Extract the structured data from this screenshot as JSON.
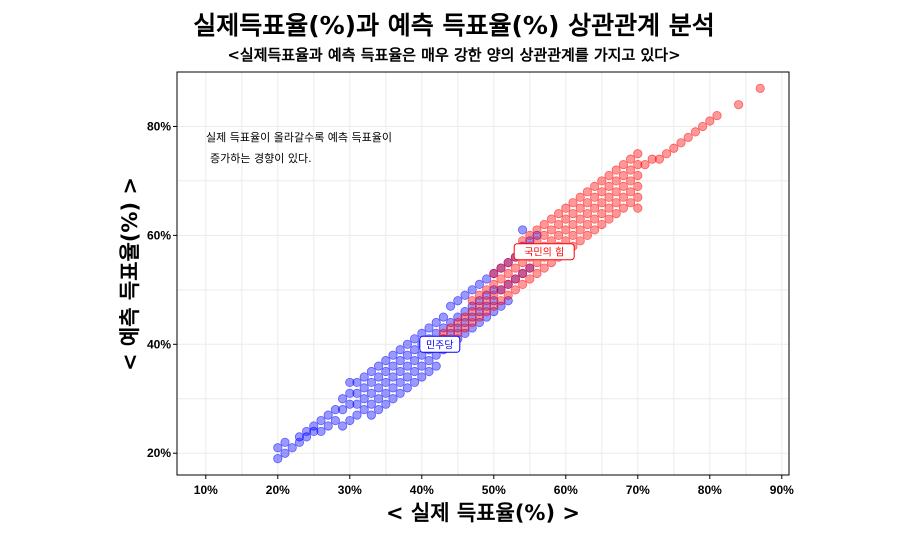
{
  "chart_data": {
    "type": "scatter",
    "title": "실제득표율(%)과 예측 득표율(%) 상관관계 분석",
    "subtitle": "<실제득표율과 예측 득표율은 매우 강한 양의 상관관계를 가지고 있다>",
    "xlabel": "< 실제 득표율(%) >",
    "ylabel": "< 예측 득표율(%) >",
    "xlim": [
      6,
      91
    ],
    "ylim": [
      16,
      90
    ],
    "x_ticks": [
      "10%",
      "20%",
      "30%",
      "40%",
      "50%",
      "60%",
      "70%",
      "80%",
      "90%"
    ],
    "x_tick_values": [
      10,
      20,
      30,
      40,
      50,
      60,
      70,
      80,
      90
    ],
    "y_ticks": [
      "20%",
      "40%",
      "60%",
      "80%"
    ],
    "y_tick_values": [
      20,
      40,
      60,
      80
    ],
    "grid": true,
    "annotation": [
      "실제 득표율이 올라갈수록 예측 득표율이",
      "증가하는 경향이 있다."
    ],
    "series": [
      {
        "name": "민주당",
        "color": "#0000ff",
        "label_position": {
          "x": 42.5,
          "y": 40
        },
        "points": [
          [
            20,
            19
          ],
          [
            20,
            21
          ],
          [
            21,
            20
          ],
          [
            21,
            22
          ],
          [
            22,
            21
          ],
          [
            23,
            22
          ],
          [
            23,
            23
          ],
          [
            24,
            23
          ],
          [
            24,
            24
          ],
          [
            25,
            24
          ],
          [
            25,
            25
          ],
          [
            26,
            24
          ],
          [
            26,
            26
          ],
          [
            27,
            25
          ],
          [
            27,
            27
          ],
          [
            28,
            26
          ],
          [
            28,
            28
          ],
          [
            29,
            25
          ],
          [
            29,
            28
          ],
          [
            29,
            30
          ],
          [
            30,
            26
          ],
          [
            30,
            29
          ],
          [
            30,
            31
          ],
          [
            30,
            33
          ],
          [
            31,
            27
          ],
          [
            31,
            29
          ],
          [
            31,
            31
          ],
          [
            31,
            33
          ],
          [
            32,
            28
          ],
          [
            32,
            30
          ],
          [
            32,
            32
          ],
          [
            32,
            34
          ],
          [
            33,
            27
          ],
          [
            33,
            29
          ],
          [
            33,
            31
          ],
          [
            33,
            33
          ],
          [
            33,
            35
          ],
          [
            34,
            28
          ],
          [
            34,
            30
          ],
          [
            34,
            32
          ],
          [
            34,
            34
          ],
          [
            34,
            36
          ],
          [
            35,
            29
          ],
          [
            35,
            31
          ],
          [
            35,
            33
          ],
          [
            35,
            35
          ],
          [
            35,
            37
          ],
          [
            36,
            30
          ],
          [
            36,
            32
          ],
          [
            36,
            34
          ],
          [
            36,
            36
          ],
          [
            36,
            38
          ],
          [
            37,
            31
          ],
          [
            37,
            33
          ],
          [
            37,
            35
          ],
          [
            37,
            37
          ],
          [
            37,
            39
          ],
          [
            38,
            32
          ],
          [
            38,
            34
          ],
          [
            38,
            36
          ],
          [
            38,
            38
          ],
          [
            38,
            40
          ],
          [
            39,
            33
          ],
          [
            39,
            35
          ],
          [
            39,
            37
          ],
          [
            39,
            39
          ],
          [
            39,
            41
          ],
          [
            40,
            34
          ],
          [
            40,
            36
          ],
          [
            40,
            38
          ],
          [
            40,
            40
          ],
          [
            40,
            42
          ],
          [
            41,
            35
          ],
          [
            41,
            37
          ],
          [
            41,
            39
          ],
          [
            41,
            41
          ],
          [
            41,
            43
          ],
          [
            42,
            36
          ],
          [
            42,
            38
          ],
          [
            42,
            40
          ],
          [
            42,
            42
          ],
          [
            42,
            44
          ],
          [
            43,
            39
          ],
          [
            43,
            41
          ],
          [
            43,
            43
          ],
          [
            43,
            45
          ],
          [
            44,
            40
          ],
          [
            44,
            42
          ],
          [
            44,
            44
          ],
          [
            44,
            47
          ],
          [
            45,
            41
          ],
          [
            45,
            43
          ],
          [
            45,
            45
          ],
          [
            45,
            48
          ],
          [
            46,
            42
          ],
          [
            46,
            44
          ],
          [
            46,
            46
          ],
          [
            46,
            49
          ],
          [
            47,
            43
          ],
          [
            47,
            45
          ],
          [
            47,
            47
          ],
          [
            47,
            50
          ],
          [
            48,
            44
          ],
          [
            48,
            46
          ],
          [
            48,
            48
          ],
          [
            48,
            51
          ],
          [
            49,
            45
          ],
          [
            49,
            47
          ],
          [
            49,
            49
          ],
          [
            49,
            52
          ],
          [
            50,
            46
          ],
          [
            50,
            48
          ],
          [
            50,
            50
          ],
          [
            50,
            53
          ],
          [
            51,
            47
          ],
          [
            51,
            50
          ],
          [
            51,
            54
          ],
          [
            52,
            48
          ],
          [
            52,
            51
          ],
          [
            52,
            55
          ],
          [
            53,
            52
          ],
          [
            53,
            56
          ],
          [
            54,
            53
          ],
          [
            54,
            58
          ],
          [
            55,
            59
          ],
          [
            55,
            54
          ],
          [
            56,
            60
          ],
          [
            54,
            61
          ]
        ]
      },
      {
        "name": "국민의 힘",
        "color": "#ff0000",
        "label_position": {
          "x": 57,
          "y": 57
        },
        "points": [
          [
            42,
            40
          ],
          [
            43,
            41
          ],
          [
            43,
            42
          ],
          [
            44,
            41
          ],
          [
            44,
            43
          ],
          [
            45,
            42
          ],
          [
            45,
            44
          ],
          [
            46,
            43
          ],
          [
            46,
            45
          ],
          [
            47,
            44
          ],
          [
            47,
            46
          ],
          [
            47,
            48
          ],
          [
            48,
            45
          ],
          [
            48,
            47
          ],
          [
            48,
            49
          ],
          [
            49,
            46
          ],
          [
            49,
            48
          ],
          [
            49,
            50
          ],
          [
            50,
            47
          ],
          [
            50,
            49
          ],
          [
            50,
            51
          ],
          [
            50,
            53
          ],
          [
            51,
            48
          ],
          [
            51,
            50
          ],
          [
            51,
            52
          ],
          [
            51,
            54
          ],
          [
            52,
            49
          ],
          [
            52,
            51
          ],
          [
            52,
            53
          ],
          [
            52,
            55
          ],
          [
            53,
            50
          ],
          [
            53,
            52
          ],
          [
            53,
            54
          ],
          [
            53,
            56
          ],
          [
            54,
            51
          ],
          [
            54,
            53
          ],
          [
            54,
            55
          ],
          [
            54,
            57
          ],
          [
            54,
            59
          ],
          [
            55,
            52
          ],
          [
            55,
            54
          ],
          [
            55,
            56
          ],
          [
            55,
            58
          ],
          [
            55,
            60
          ],
          [
            56,
            53
          ],
          [
            56,
            55
          ],
          [
            56,
            57
          ],
          [
            56,
            59
          ],
          [
            56,
            61
          ],
          [
            57,
            54
          ],
          [
            57,
            56
          ],
          [
            57,
            58
          ],
          [
            57,
            60
          ],
          [
            57,
            62
          ],
          [
            58,
            55
          ],
          [
            58,
            57
          ],
          [
            58,
            59
          ],
          [
            58,
            61
          ],
          [
            58,
            63
          ],
          [
            59,
            56
          ],
          [
            59,
            58
          ],
          [
            59,
            60
          ],
          [
            59,
            62
          ],
          [
            59,
            64
          ],
          [
            60,
            57
          ],
          [
            60,
            59
          ],
          [
            60,
            61
          ],
          [
            60,
            63
          ],
          [
            60,
            65
          ],
          [
            61,
            58
          ],
          [
            61,
            60
          ],
          [
            61,
            62
          ],
          [
            61,
            64
          ],
          [
            61,
            66
          ],
          [
            62,
            59
          ],
          [
            62,
            61
          ],
          [
            62,
            63
          ],
          [
            62,
            65
          ],
          [
            62,
            67
          ],
          [
            63,
            60
          ],
          [
            63,
            62
          ],
          [
            63,
            64
          ],
          [
            63,
            66
          ],
          [
            63,
            68
          ],
          [
            64,
            61
          ],
          [
            64,
            63
          ],
          [
            64,
            65
          ],
          [
            64,
            67
          ],
          [
            64,
            69
          ],
          [
            65,
            62
          ],
          [
            65,
            64
          ],
          [
            65,
            66
          ],
          [
            65,
            68
          ],
          [
            65,
            70
          ],
          [
            66,
            63
          ],
          [
            66,
            65
          ],
          [
            66,
            67
          ],
          [
            66,
            69
          ],
          [
            66,
            71
          ],
          [
            67,
            64
          ],
          [
            67,
            66
          ],
          [
            67,
            68
          ],
          [
            67,
            70
          ],
          [
            67,
            72
          ],
          [
            68,
            65
          ],
          [
            68,
            67
          ],
          [
            68,
            69
          ],
          [
            68,
            71
          ],
          [
            68,
            73
          ],
          [
            69,
            66
          ],
          [
            69,
            68
          ],
          [
            69,
            70
          ],
          [
            69,
            72
          ],
          [
            69,
            74
          ],
          [
            70,
            65
          ],
          [
            70,
            67
          ],
          [
            70,
            69
          ],
          [
            70,
            71
          ],
          [
            70,
            73
          ],
          [
            70,
            75
          ],
          [
            71,
            73
          ],
          [
            72,
            74
          ],
          [
            73,
            74
          ],
          [
            74,
            75
          ],
          [
            75,
            76
          ],
          [
            76,
            77
          ],
          [
            77,
            78
          ],
          [
            78,
            79
          ],
          [
            79,
            80
          ],
          [
            80,
            81
          ],
          [
            81,
            82
          ],
          [
            84,
            84
          ],
          [
            87,
            87
          ]
        ]
      }
    ]
  }
}
